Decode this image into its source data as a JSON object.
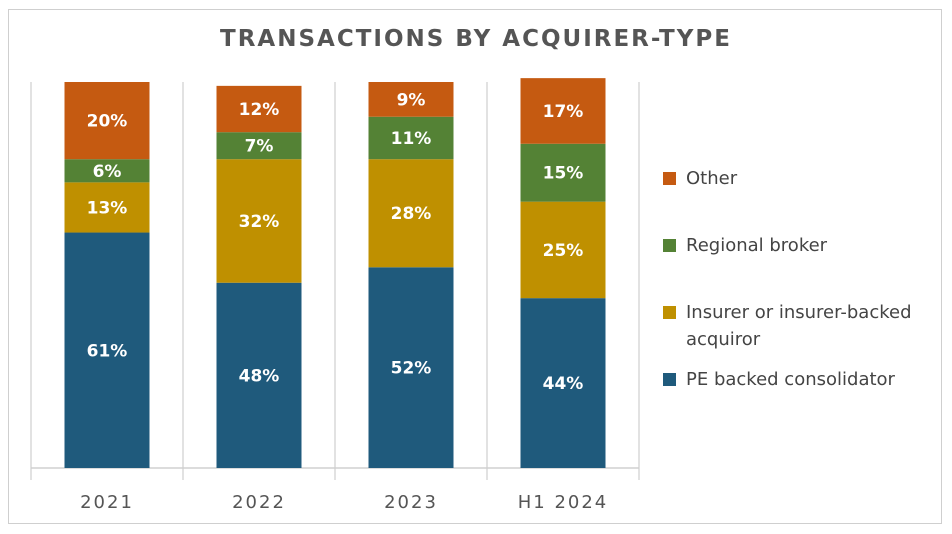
{
  "chart_data": {
    "type": "bar",
    "stacked": true,
    "title": "TRANSACTIONS BY ACQUIRER-TYPE",
    "categories": [
      "2021",
      "2022",
      "2023",
      "H1 2024"
    ],
    "series": [
      {
        "name": "PE backed consolidator",
        "color": "#1f5a7c",
        "values": [
          61,
          48,
          52,
          44
        ],
        "labels": [
          "61%",
          "48%",
          "52%",
          "44%"
        ]
      },
      {
        "name": "Insurer or insurer-backed acquiror",
        "color": "#bf9000",
        "values": [
          13,
          32,
          28,
          25
        ],
        "labels": [
          "13%",
          "32%",
          "28%",
          "25%"
        ]
      },
      {
        "name": "Regional broker",
        "color": "#548235",
        "values": [
          6,
          7,
          11,
          15
        ],
        "labels": [
          "6%",
          "7%",
          "11%",
          "15%"
        ]
      },
      {
        "name": "Other",
        "color": "#c55a11",
        "values": [
          20,
          12,
          9,
          17
        ],
        "labels": [
          "20%",
          "12%",
          "9%",
          "17%"
        ]
      }
    ],
    "ylim": [
      0,
      100
    ],
    "legend_position": "right",
    "grid": false
  }
}
